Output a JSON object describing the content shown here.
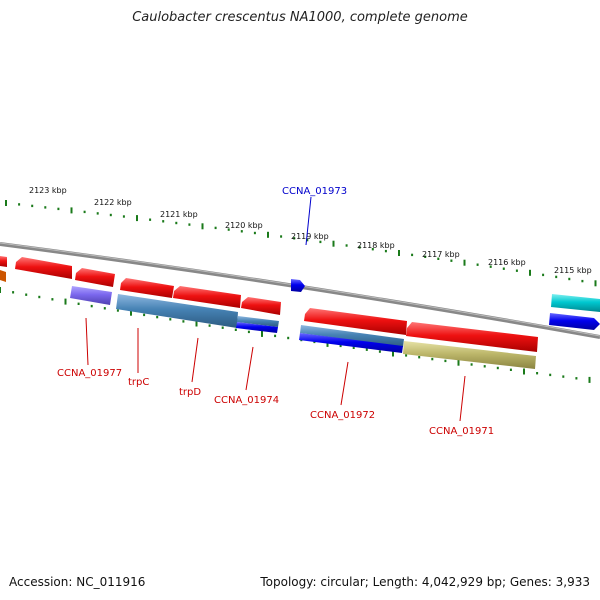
{
  "title": "Caulobacter crescentus NA1000, complete genome",
  "footer": {
    "accession": "Accession: NC_011916",
    "summary": "Topology: circular; Length: 4,042,929 bp; Genes: 3,933"
  },
  "ruler": [
    {
      "label": "2123 kbp"
    },
    {
      "label": "2122 kbp"
    },
    {
      "label": "2121 kbp"
    },
    {
      "label": "2120 kbp"
    },
    {
      "label": "2119 kbp"
    },
    {
      "label": "2118 kbp"
    },
    {
      "label": "2117 kbp"
    },
    {
      "label": "2116 kbp"
    },
    {
      "label": "2115 kbp"
    }
  ],
  "gene_labels": [
    {
      "text": "CCNA_01973",
      "color": "#0000cc"
    },
    {
      "text": "CCNA_01977",
      "color": "#cc0000"
    },
    {
      "text": "trpC",
      "color": "#cc0000"
    },
    {
      "text": "trpD",
      "color": "#cc0000"
    },
    {
      "text": "CCNA_01974",
      "color": "#cc0000"
    },
    {
      "text": "CCNA_01972",
      "color": "#cc0000"
    },
    {
      "text": "CCNA_01971",
      "color": "#cc0000"
    }
  ],
  "colors": {
    "backbone": "#888888",
    "tick": "#1a7a1a",
    "gene_red": "#ee1111",
    "gene_blue": "#0000ee",
    "gene_steel": "#4682b4",
    "gene_purple": "#7b68ee",
    "gene_khaki": "#bdb76b",
    "gene_cyan": "#00c8d0"
  }
}
